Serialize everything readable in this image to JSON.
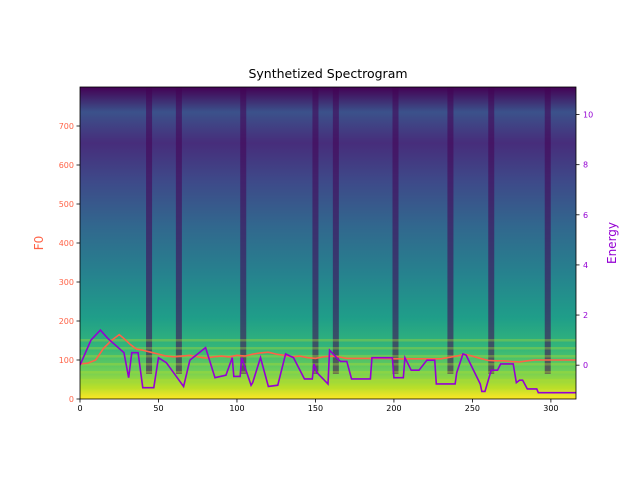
{
  "chart_data": {
    "type": "line",
    "title": "Synthetized Spectrogram",
    "left_ylabel": "F0",
    "right_ylabel": "Energy",
    "xlim": [
      0,
      316
    ],
    "f0_ylim": [
      0,
      800
    ],
    "energy_ylim": [
      -1.35,
      11.1
    ],
    "x_ticks": [
      0,
      50,
      100,
      150,
      200,
      250,
      300
    ],
    "f0_ticks": [
      0,
      100,
      200,
      300,
      400,
      500,
      600,
      700
    ],
    "energy_ticks": [
      0,
      2,
      4,
      6,
      8,
      10
    ],
    "colors": {
      "f0": "#ff6347",
      "energy": "#9400d3",
      "background_colormap": "viridis"
    },
    "series": [
      {
        "name": "F0",
        "axis": "left",
        "x": [
          0,
          5,
          10,
          15,
          20,
          25,
          28,
          32,
          36,
          40,
          45,
          50,
          55,
          60,
          65,
          70,
          75,
          80,
          85,
          90,
          95,
          100,
          105,
          110,
          115,
          120,
          125,
          130,
          135,
          140,
          145,
          150,
          155,
          160,
          165,
          170,
          180,
          190,
          200,
          210,
          220,
          230,
          240,
          245,
          250,
          255,
          260,
          265,
          270,
          275,
          280,
          285,
          290,
          300,
          316
        ],
        "values": [
          90,
          92,
          100,
          130,
          150,
          165,
          155,
          140,
          128,
          125,
          120,
          115,
          110,
          108,
          110,
          112,
          108,
          105,
          108,
          110,
          108,
          112,
          110,
          115,
          118,
          120,
          115,
          112,
          108,
          110,
          106,
          104,
          108,
          110,
          108,
          104,
          104,
          104,
          103,
          103,
          103,
          103,
          110,
          115,
          110,
          104,
          99,
          98,
          98,
          96,
          95,
          98,
          100,
          100,
          100
        ]
      },
      {
        "name": "Energy",
        "axis": "right",
        "x": [
          0,
          7,
          13,
          18,
          28,
          31,
          33,
          37,
          40,
          47,
          50,
          55,
          66,
          70,
          80,
          86,
          93,
          97,
          98,
          102,
          103,
          109,
          110,
          115,
          120,
          126,
          131,
          136,
          143,
          148,
          149,
          151,
          158,
          159,
          165,
          166,
          170,
          173,
          185,
          186,
          199,
          200,
          206,
          207,
          211,
          216,
          221,
          226,
          227,
          239,
          240,
          244,
          246,
          255,
          256,
          258,
          262,
          266,
          268,
          276,
          278,
          280,
          282,
          285,
          291,
          292,
          296,
          298,
          316
        ],
        "values": [
          0,
          1.0,
          1.4,
          1.05,
          0.5,
          -0.5,
          0.5,
          0.5,
          -0.9,
          -0.9,
          0.3,
          0.1,
          -0.85,
          0.2,
          0.7,
          -0.5,
          -0.4,
          0.3,
          -0.45,
          -0.45,
          0.3,
          -0.8,
          -0.7,
          0.3,
          -0.85,
          -0.8,
          0.45,
          0.3,
          -0.55,
          -0.55,
          0.05,
          -0.3,
          -0.75,
          0.6,
          0.2,
          0.15,
          0.15,
          -0.55,
          -0.55,
          0.3,
          0.3,
          -0.5,
          -0.5,
          0.3,
          -0.2,
          -0.2,
          0.2,
          0.2,
          -0.75,
          -0.75,
          -0.3,
          0.45,
          0.4,
          -0.75,
          -1.05,
          -1.05,
          -0.2,
          -0.2,
          0.05,
          0.05,
          -0.7,
          -0.6,
          -0.6,
          -0.95,
          -0.95,
          -1.1,
          -1.1,
          -1.1,
          -1.1
        ]
      }
    ]
  }
}
